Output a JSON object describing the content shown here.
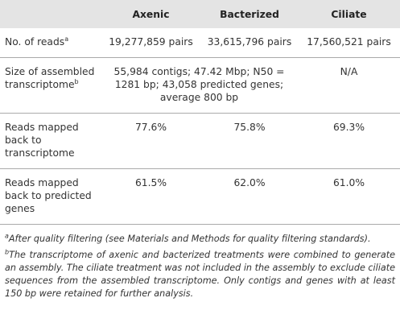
{
  "table": {
    "header": [
      "Axenic",
      "Bacterized",
      "Ciliate"
    ],
    "rows": [
      {
        "label": "No. of reads",
        "note": "a",
        "cells": [
          "19,277,859 pairs",
          "33,615,796 pairs",
          "17,560,521 pairs"
        ]
      },
      {
        "label": "Size of assembled transcriptome",
        "note": "b",
        "cells": [
          "55,984 contigs; 47.42 Mbp; N50 = 1281 bp; 43,058 predicted genes; average 800 bp",
          "N/A"
        ]
      },
      {
        "label": "Reads mapped back to transcriptome",
        "cells": [
          "77.6%",
          "75.8%",
          "69.3%"
        ]
      },
      {
        "label": "Reads mapped back to predicted genes",
        "cells": [
          "61.5%",
          "62.0%",
          "61.0%"
        ]
      }
    ]
  },
  "footnotes": [
    {
      "mark": "a",
      "text": "After quality filtering (see Materials and Methods for quality filtering standards)."
    },
    {
      "mark": "b",
      "text": "The transcriptome of axenic and bacterized treatments were combined to generate an assembly. The ciliate treatment was not included in the assembly to exclude ciliate sequences from the assembled transcriptome. Only contigs and genes with at least 150 bp were retained for further analysis."
    }
  ]
}
